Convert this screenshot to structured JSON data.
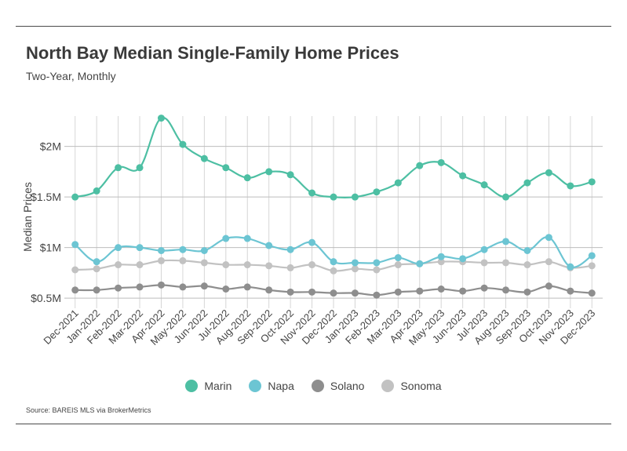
{
  "header": {
    "title": "North Bay Median Single-Family Home Prices",
    "subtitle": "Two-Year, Monthly"
  },
  "footer": {
    "source": "Source:  BAREIS MLS via BrokerMetrics"
  },
  "chart_data": {
    "type": "line",
    "title": "North Bay Median Single-Family Home Prices",
    "subtitle": "Two-Year, Monthly",
    "xlabel": "",
    "ylabel": "Median Prices",
    "ylim": [
      0.4,
      2.3
    ],
    "yticks": [
      0.5,
      1.0,
      1.5,
      2.0
    ],
    "ytick_labels": [
      "$0.5M",
      "$1M",
      "$1.5M",
      "$2M"
    ],
    "grid": "on",
    "legend_position": "bottom",
    "categories": [
      "Dec-2021",
      "Jan-2022",
      "Feb-2022",
      "Mar-2022",
      "Apr-2022",
      "May-2022",
      "Jun-2022",
      "Jul-2022",
      "Aug-2022",
      "Sep-2022",
      "Oct-2022",
      "Nov-2022",
      "Dec-2022",
      "Jan-2023",
      "Feb-2023",
      "Mar-2023",
      "Apr-2023",
      "May-2023",
      "Jun-2023",
      "Jul-2023",
      "Aug-2023",
      "Sep-2023",
      "Oct-2023",
      "Nov-2023",
      "Dec-2023"
    ],
    "series": [
      {
        "name": "Marin",
        "color": "#4dbfa3",
        "values": [
          1.5,
          1.56,
          1.79,
          1.79,
          2.28,
          2.02,
          1.88,
          1.79,
          1.69,
          1.75,
          1.72,
          1.54,
          1.5,
          1.5,
          1.55,
          1.64,
          1.81,
          1.84,
          1.71,
          1.62,
          1.5,
          1.64,
          1.74,
          1.61,
          1.65
        ]
      },
      {
        "name": "Napa",
        "color": "#6cc5d3",
        "values": [
          1.03,
          0.86,
          1.0,
          1.0,
          0.97,
          0.98,
          0.97,
          1.09,
          1.09,
          1.02,
          0.98,
          1.05,
          0.86,
          0.85,
          0.85,
          0.9,
          0.84,
          0.91,
          0.89,
          0.98,
          1.06,
          0.97,
          1.1,
          0.81,
          0.92
        ]
      },
      {
        "name": "Solano",
        "color": "#8e8e8e",
        "values": [
          0.58,
          0.58,
          0.6,
          0.61,
          0.63,
          0.61,
          0.62,
          0.59,
          0.61,
          0.58,
          0.56,
          0.56,
          0.55,
          0.55,
          0.53,
          0.56,
          0.57,
          0.59,
          0.57,
          0.6,
          0.58,
          0.56,
          0.62,
          0.57,
          0.55
        ]
      },
      {
        "name": "Sonoma",
        "color": "#c2c2c2",
        "values": [
          0.78,
          0.79,
          0.83,
          0.83,
          0.87,
          0.87,
          0.85,
          0.83,
          0.83,
          0.82,
          0.8,
          0.83,
          0.77,
          0.79,
          0.78,
          0.83,
          0.84,
          0.86,
          0.86,
          0.85,
          0.85,
          0.83,
          0.86,
          0.8,
          0.82
        ]
      }
    ]
  }
}
